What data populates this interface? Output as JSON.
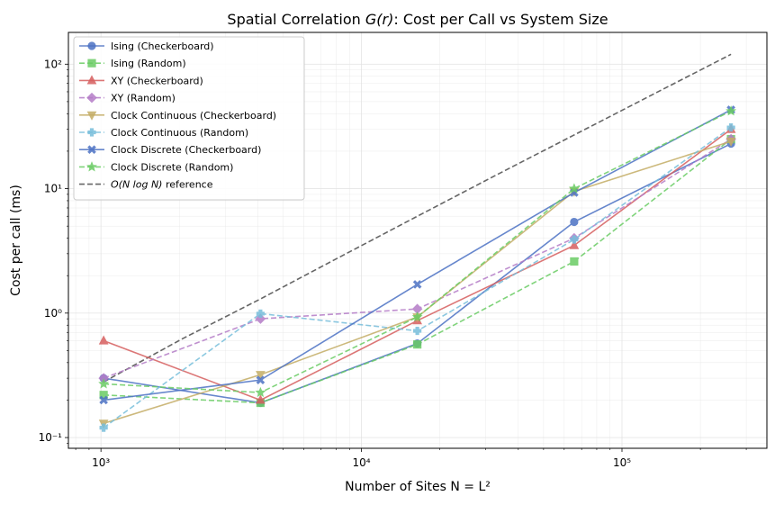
{
  "chart_data": {
    "type": "line",
    "title_prefix": "Spatial Correlation ",
    "title_math": "G(r)",
    "title_suffix": ": Cost per Call vs System Size",
    "xlabel": "Number of Sites N = L²",
    "ylabel": "Cost per call (ms)",
    "xscale": "log",
    "yscale": "log",
    "xlim": [
      750,
      360000
    ],
    "ylim": [
      0.082,
      180
    ],
    "x_ticks": [
      1000,
      10000,
      100000
    ],
    "x_tick_labels": [
      "10³",
      "10⁴",
      "10⁵"
    ],
    "y_ticks": [
      0.1,
      1,
      10,
      100
    ],
    "y_tick_labels": [
      "10⁻¹",
      "10⁰",
      "10¹",
      "10²"
    ],
    "grid": true,
    "legend_position": "top-left",
    "x": [
      1024,
      4096,
      16384,
      65536,
      262144
    ],
    "series": [
      {
        "name": "Ising (Checkerboard)",
        "color": "#4c72c4",
        "dash": "solid",
        "marker": "circle",
        "values": [
          0.3,
          0.19,
          0.57,
          5.4,
          23
        ]
      },
      {
        "name": "Ising (Random)",
        "color": "#6acc64",
        "dash": "dashed",
        "marker": "square",
        "values": [
          0.22,
          0.19,
          0.56,
          2.6,
          25
        ]
      },
      {
        "name": "XY (Checkerboard)",
        "color": "#d65f5f",
        "dash": "solid",
        "marker": "triangle-up",
        "values": [
          0.6,
          0.2,
          0.87,
          3.5,
          30
        ]
      },
      {
        "name": "XY (Random)",
        "color": "#b47cc7",
        "dash": "dashed",
        "marker": "diamond",
        "values": [
          0.3,
          0.9,
          1.08,
          4.0,
          25
        ]
      },
      {
        "name": "Clock Continuous (Checkerboard)",
        "color": "#c4ad66",
        "dash": "solid",
        "marker": "triangle-down",
        "values": [
          0.13,
          0.32,
          0.93,
          9.5,
          24
        ]
      },
      {
        "name": "Clock Continuous (Random)",
        "color": "#77bedb",
        "dash": "dashed",
        "marker": "plus",
        "values": [
          0.12,
          0.99,
          0.72,
          3.9,
          31
        ]
      },
      {
        "name": "Clock Discrete (Checkerboard)",
        "color": "#4c72c4",
        "dash": "solid",
        "marker": "x",
        "values": [
          0.2,
          0.29,
          1.7,
          9.3,
          43
        ]
      },
      {
        "name": "Clock Discrete (Random)",
        "color": "#6acc64",
        "dash": "dashed",
        "marker": "star",
        "values": [
          0.27,
          0.23,
          0.93,
          10,
          42
        ]
      }
    ],
    "reference": {
      "name_math": "O(N log N)",
      "name_suffix": " reference",
      "color": "#666666",
      "dash": "dashed",
      "x": [
        1024,
        2048,
        4096,
        8192,
        16384,
        32768,
        65536,
        131072,
        262144
      ],
      "values": [
        0.28,
        0.62,
        1.3,
        2.8,
        6.0,
        12.8,
        27,
        57,
        120
      ]
    }
  }
}
